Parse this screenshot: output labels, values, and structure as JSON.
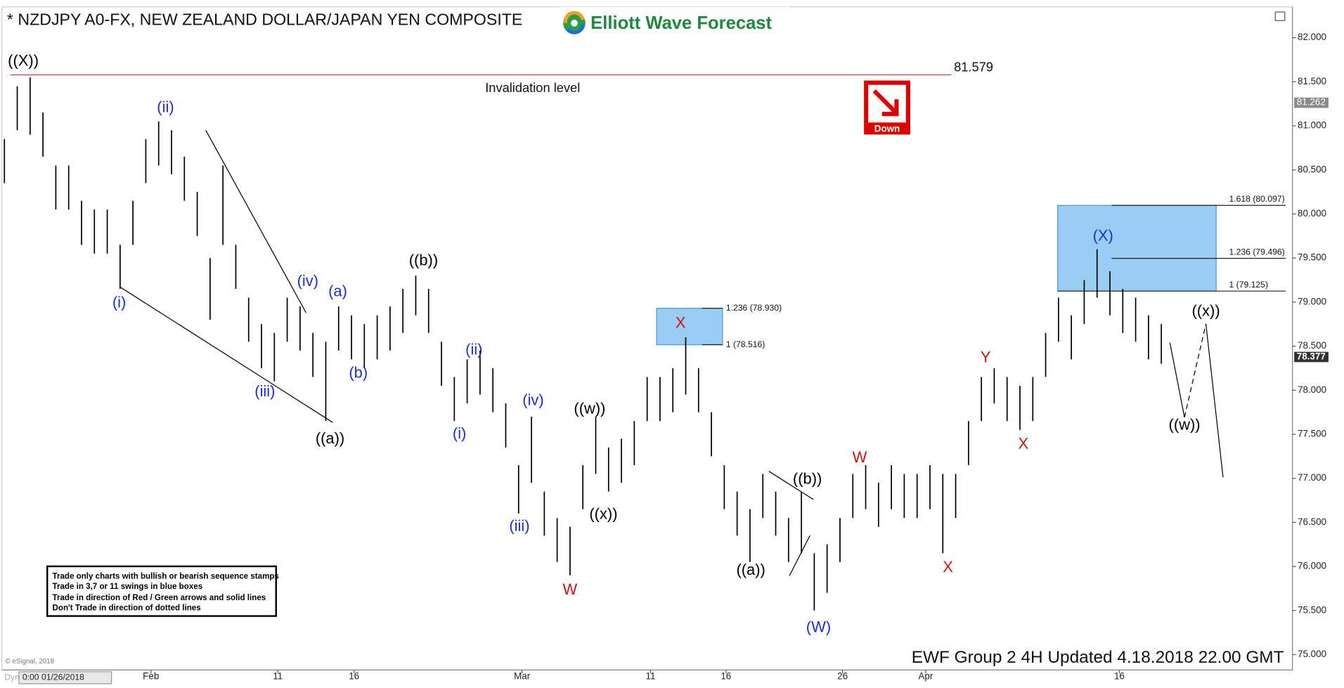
{
  "chart_data": {
    "type": "ohlc",
    "title": "* NZDJPY A0-FX, NEW ZEALAND DOLLAR/JAPAN YEN COMPOSITE",
    "logo": "Elliott Wave Forecast",
    "signal": "Down",
    "footer": "EWF Group 2 4H Updated 4.18.2018  22.00 GMT",
    "copyright": "© eSignal, 2018",
    "cursor_label": "Dyn",
    "cursor_time": "0:00 01/26/2018",
    "high": [
      80.85,
      81.45,
      81.55,
      81.15,
      80.55,
      80.55,
      80.15,
      80.05,
      80.05,
      79.65,
      80.15,
      80.85,
      81.05,
      80.95,
      80.65,
      80.25,
      79.5,
      80.55,
      79.65,
      79.05,
      78.75,
      78.65,
      79.05,
      78.95,
      78.65,
      78.55,
      78.95,
      78.85,
      78.75,
      78.85,
      78.95,
      79.15,
      79.3,
      79.15,
      78.55,
      78.15,
      78.35,
      78.45,
      78.25,
      77.85,
      77.15,
      77.7,
      76.85,
      76.55,
      76.45,
      77.15,
      77.7,
      77.35,
      77.45,
      77.65,
      78.15,
      78.15,
      78.25,
      78.6,
      78.25,
      77.75,
      77.15,
      76.85,
      76.65,
      77.05,
      76.85,
      76.55,
      76.85,
      76.15,
      76.25,
      76.55,
      77.05,
      77.15,
      76.95,
      77.15,
      77.05,
      77.05,
      77.15,
      77.05,
      77.05,
      77.65,
      78.15,
      78.25,
      78.15,
      78.05,
      78.15,
      78.65,
      79.05,
      78.85,
      79.25,
      79.6,
      79.35,
      79.15,
      79.05,
      78.85,
      78.75
    ],
    "low": [
      80.35,
      80.95,
      80.9,
      80.65,
      80.05,
      80.05,
      79.65,
      79.55,
      79.55,
      79.15,
      79.65,
      80.35,
      80.55,
      80.45,
      80.15,
      79.75,
      78.8,
      79.65,
      79.15,
      78.55,
      78.25,
      78.1,
      78.55,
      78.45,
      78.15,
      77.65,
      78.45,
      78.35,
      78.25,
      78.35,
      78.45,
      78.65,
      78.85,
      78.65,
      78.05,
      77.65,
      77.85,
      77.95,
      77.75,
      77.35,
      76.6,
      76.95,
      76.35,
      76.05,
      75.9,
      76.65,
      77.05,
      76.85,
      76.95,
      77.15,
      77.65,
      77.65,
      77.75,
      77.95,
      77.75,
      77.25,
      76.65,
      76.35,
      76.05,
      76.55,
      76.35,
      76.05,
      76.15,
      75.5,
      75.7,
      76.05,
      76.55,
      76.65,
      76.45,
      76.65,
      76.55,
      76.55,
      76.65,
      76.15,
      76.55,
      77.15,
      77.65,
      77.85,
      77.65,
      77.55,
      77.65,
      78.15,
      78.55,
      78.35,
      78.75,
      79.05,
      78.85,
      78.65,
      78.55,
      78.35,
      78.3
    ],
    "color": "#000000",
    "xticks": [
      "Feb",
      "11",
      "16",
      "Mar",
      "11",
      "16",
      "26",
      "Apr",
      "16"
    ],
    "ylim": [
      74.825,
      82.35
    ],
    "yticks": [
      {
        "value": 75,
        "label": "75.000"
      },
      {
        "value": 75.5,
        "label": "75.500"
      },
      {
        "value": 76,
        "label": "76.000"
      },
      {
        "value": 76.5,
        "label": "76.500"
      },
      {
        "value": 77,
        "label": "77.000"
      },
      {
        "value": 77.5,
        "label": "77.500"
      },
      {
        "value": 78,
        "label": "78.000"
      },
      {
        "value": 78.5,
        "label": "78.500"
      },
      {
        "value": 79,
        "label": "79.000"
      },
      {
        "value": 79.5,
        "label": "79.500"
      },
      {
        "value": 80,
        "label": "80.000"
      },
      {
        "value": 80.5,
        "label": "80.500"
      },
      {
        "value": 81,
        "label": "81.000"
      },
      {
        "value": 81.5,
        "label": "81.500"
      },
      {
        "value": 82,
        "label": "82.000"
      }
    ],
    "price_tags": [
      81.262,
      78.377
    ],
    "invalidation": {
      "value": 81.579,
      "text": "Invalidation level"
    },
    "fib_boxes": [
      {
        "levels": [
          {
            "value": 78.93,
            "label": "1.236 (78.930)"
          },
          {
            "value": 78.516,
            "label": "1 (78.516)"
          }
        ]
      },
      {
        "levels": [
          {
            "value": 80.097,
            "label": "1.618 (80.097)"
          },
          {
            "value": 79.496,
            "label": "1.236 (79.496)"
          },
          {
            "value": 79.125,
            "label": "1 (79.125)"
          }
        ]
      }
    ],
    "waves": [
      {
        "text": "((X))",
        "color": "#000000"
      },
      {
        "text": "(i)",
        "color": "#1a2fd6"
      },
      {
        "text": "(ii)",
        "color": "#1a2fd6"
      },
      {
        "text": "(iii)",
        "color": "#1a2fd6"
      },
      {
        "text": "(iv)",
        "color": "#1a2fd6"
      },
      {
        "text": "((a))",
        "color": "#000000"
      },
      {
        "text": "(a)",
        "color": "#1a2fd6"
      },
      {
        "text": "(b)",
        "color": "#1a2fd6"
      },
      {
        "text": "((b))",
        "color": "#000000"
      },
      {
        "text": "(i)",
        "color": "#1a2fd6"
      },
      {
        "text": "(ii)",
        "color": "#1a2fd6"
      },
      {
        "text": "(iii)",
        "color": "#1a2fd6"
      },
      {
        "text": "(iv)",
        "color": "#1a2fd6"
      },
      {
        "text": "((w))",
        "color": "#000000"
      },
      {
        "text": "((x))",
        "color": "#000000"
      },
      {
        "text": "W",
        "color": "#d01010"
      },
      {
        "text": "X",
        "color": "#d01010"
      },
      {
        "text": "((a))",
        "color": "#000000"
      },
      {
        "text": "((b))",
        "color": "#000000"
      },
      {
        "text": "(W)",
        "color": "#1a2fd6"
      },
      {
        "text": "W",
        "color": "#d01010"
      },
      {
        "text": "X",
        "color": "#d01010"
      },
      {
        "text": "Y",
        "color": "#d01010"
      },
      {
        "text": "X",
        "color": "#d01010"
      },
      {
        "text": "(X)",
        "color": "#1a2fd6"
      },
      {
        "text": "((w))",
        "color": "#000000"
      },
      {
        "text": "((x))",
        "color": "#000000"
      }
    ],
    "notes": [
      "Trade only charts with bullish or bearish sequence stamps",
      "Trade in 3,7 or 11 swings in blue boxes",
      "Trade in direction of Red / Green arrows and solid lines",
      "Don't Trade in direction of dotted lines"
    ]
  }
}
